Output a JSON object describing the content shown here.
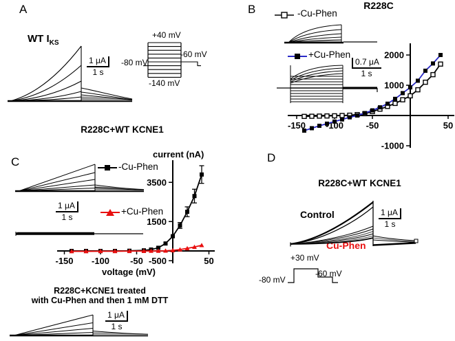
{
  "figure": {
    "panels": {
      "A": {
        "label": "A",
        "trace_label": "WT I",
        "trace_label_sub": "KS",
        "scalebar": {
          "current": "1 μA",
          "time": "1 s"
        },
        "protocol": {
          "top": "+40 mV",
          "right": "-60 mV",
          "left": "-80 mV",
          "bottom": "-140 mV"
        }
      },
      "B": {
        "label": "B",
        "title": "R228C",
        "scalebar": {
          "current": "0.7 μA",
          "time": "1 s"
        }
      },
      "C": {
        "label": "C",
        "title": "R228C+WT KCNE1",
        "scalebar": {
          "current": "1 μA",
          "time": "1 s"
        },
        "axis": {
          "y": "current (nA)",
          "x": "voltage (mV)"
        },
        "caption_line1": "R228C+KCNE1 treated",
        "caption_line2": "with Cu-Phen and then 1 mM DTT",
        "scalebar2": {
          "current": "1 μA",
          "time": "1 s"
        }
      },
      "D": {
        "label": "D",
        "title": "R228C+WT KCNE1",
        "control": "Control",
        "treated": "Cu-Phen",
        "scalebar": {
          "current": "1 μA",
          "time": "1 s"
        },
        "protocol": {
          "top": "+30 mV",
          "mid": "-60 mV",
          "left": "-80 mV"
        }
      }
    },
    "colors": {
      "accent_blue": "#2a2ac8",
      "accent_red": "#e81010",
      "ink": "#000000"
    }
  },
  "chart_data": [
    {
      "type": "line",
      "panel": "B",
      "title": "R228C",
      "xlabel": "",
      "ylabel": "",
      "x_ticks": [
        -150,
        -100,
        -50,
        50
      ],
      "y_ticks": [
        2000,
        1000,
        -1000
      ],
      "xlim": [
        -160,
        55
      ],
      "ylim": [
        -1000,
        2400
      ],
      "grid": false,
      "x": [
        -140,
        -130,
        -120,
        -110,
        -100,
        -90,
        -80,
        -70,
        -60,
        -50,
        -40,
        -30,
        -20,
        -10,
        0,
        10,
        20,
        30,
        40
      ],
      "series": [
        {
          "name": "-Cu-Phen",
          "color": "#000000",
          "marker": "open-square",
          "values": [
            -30,
            -25,
            -20,
            -15,
            -10,
            0,
            10,
            30,
            60,
            130,
            210,
            300,
            400,
            520,
            650,
            850,
            1100,
            1350,
            1700
          ]
        },
        {
          "name": "+Cu-Phen",
          "color": "#2a2ac8",
          "marker": "filled-square",
          "marker_color": "#000000",
          "values": [
            -500,
            -420,
            -340,
            -270,
            -200,
            -130,
            -60,
            0,
            80,
            170,
            270,
            390,
            550,
            740,
            930,
            1150,
            1480,
            1720,
            2000
          ]
        }
      ]
    },
    {
      "type": "line",
      "panel": "C",
      "title": "R228C+WT KCNE1",
      "xlabel": "voltage (mV)",
      "ylabel": "current (nA)",
      "x_ticks": [
        -150,
        -100,
        -50,
        50
      ],
      "y_ticks": [
        3500,
        1500,
        -500
      ],
      "xlim": [
        -160,
        55
      ],
      "ylim": [
        -500,
        4300
      ],
      "grid": false,
      "x": [
        -140,
        -120,
        -100,
        -80,
        -60,
        -40,
        -30,
        -20,
        -10,
        0,
        10,
        20,
        30,
        40
      ],
      "series": [
        {
          "name": "-Cu-Phen",
          "color": "#000000",
          "marker": "filled-square",
          "values": [
            0,
            0,
            0,
            0,
            10,
            30,
            70,
            160,
            380,
            750,
            1300,
            2000,
            2800,
            3900
          ],
          "errors": [
            0,
            0,
            0,
            0,
            0,
            0,
            0,
            0,
            0,
            0,
            150,
            250,
            350,
            450
          ]
        },
        {
          "name": "+Cu-Phen",
          "color": "#e81010",
          "marker": "filled-triangle",
          "values": [
            -20,
            -20,
            -15,
            -15,
            -10,
            -5,
            0,
            0,
            10,
            30,
            70,
            130,
            200,
            290
          ]
        }
      ]
    }
  ]
}
